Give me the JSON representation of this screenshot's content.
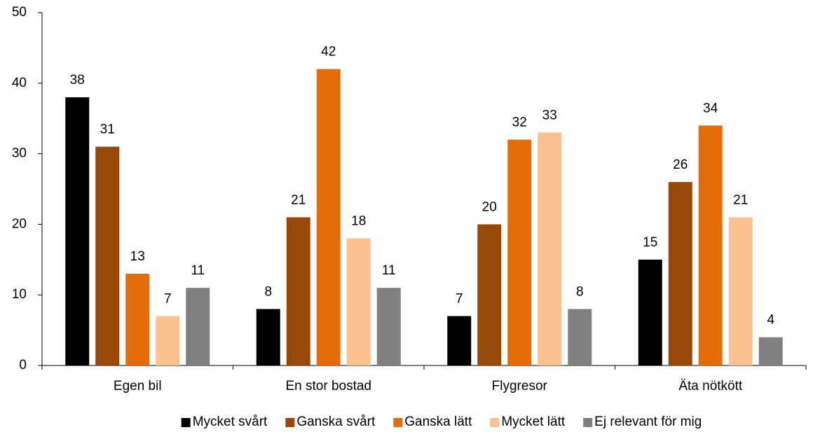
{
  "chart_data": {
    "type": "bar",
    "categories": [
      "Egen bil",
      "En stor bostad",
      "Flygresor",
      "Äta nötkött"
    ],
    "series": [
      {
        "name": "Mycket svårt",
        "color": "#000000",
        "values": [
          38,
          8,
          7,
          15
        ]
      },
      {
        "name": "Ganska svårt",
        "color": "#984807",
        "values": [
          31,
          21,
          20,
          26
        ]
      },
      {
        "name": "Ganska lätt",
        "color": "#e46c0a",
        "values": [
          13,
          42,
          32,
          34
        ]
      },
      {
        "name": "Mycket lätt",
        "color": "#fac090",
        "values": [
          7,
          18,
          33,
          21
        ]
      },
      {
        "name": "Ej relevant för mig",
        "color": "#808080",
        "values": [
          11,
          11,
          8,
          4
        ]
      }
    ],
    "ylim": [
      0,
      50
    ],
    "yticks": [
      0,
      10,
      20,
      30,
      40,
      50
    ],
    "grid": false,
    "legend": "bottom"
  }
}
